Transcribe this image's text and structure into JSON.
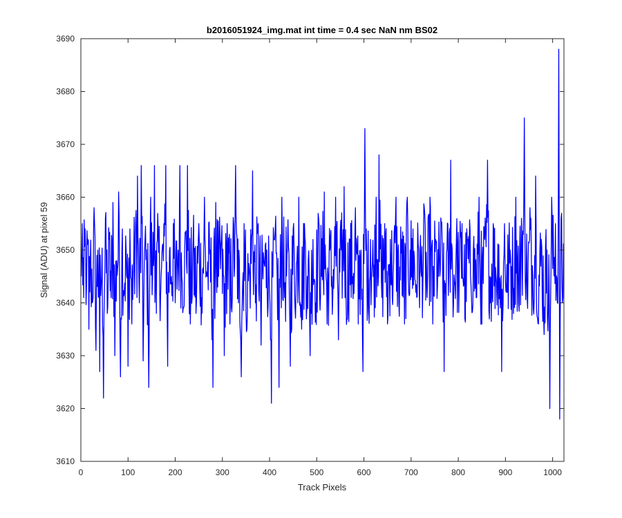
{
  "chart_data": {
    "type": "line",
    "title": "b2016051924_img.mat int time = 0.4 sec  NaN nm BS02",
    "xlabel": "Track Pixels",
    "ylabel": "Signal (ADU) at pixel 59",
    "xlim": [
      0,
      1024
    ],
    "ylim": [
      3610,
      3690
    ],
    "xticks": [
      0,
      100,
      200,
      300,
      400,
      500,
      600,
      700,
      800,
      900,
      1000
    ],
    "yticks": [
      3610,
      3620,
      3630,
      3640,
      3650,
      3660,
      3670,
      3680,
      3690
    ],
    "grid": false,
    "legend": "none",
    "series": [
      {
        "color": "#0000ff",
        "x_start": 1,
        "x_step": 1,
        "keypoints": [
          [
            1,
            3645
          ],
          [
            3,
            3655
          ],
          [
            6,
            3641
          ],
          [
            9,
            3654
          ],
          [
            12,
            3643
          ],
          [
            15,
            3652
          ],
          [
            17,
            3635
          ],
          [
            20,
            3648
          ],
          [
            24,
            3640
          ],
          [
            28,
            3658
          ],
          [
            32,
            3631
          ],
          [
            36,
            3650
          ],
          [
            40,
            3627
          ],
          [
            44,
            3645
          ],
          [
            48,
            3622
          ],
          [
            52,
            3656
          ],
          [
            56,
            3638
          ],
          [
            60,
            3652
          ],
          [
            64,
            3641
          ],
          [
            68,
            3659
          ],
          [
            72,
            3630
          ],
          [
            76,
            3648
          ],
          [
            80,
            3661
          ],
          [
            84,
            3626
          ],
          [
            88,
            3654
          ],
          [
            92,
            3642
          ],
          [
            96,
            3650
          ],
          [
            100,
            3628
          ],
          [
            104,
            3654
          ],
          [
            108,
            3636
          ],
          [
            112,
            3648
          ],
          [
            116,
            3655
          ],
          [
            120,
            3664
          ],
          [
            124,
            3640
          ],
          [
            128,
            3666
          ],
          [
            132,
            3629
          ],
          [
            136,
            3652
          ],
          [
            140,
            3645
          ],
          [
            144,
            3624
          ],
          [
            148,
            3660
          ],
          [
            152,
            3645
          ],
          [
            156,
            3666
          ],
          [
            160,
            3638
          ],
          [
            164,
            3653
          ],
          [
            170,
            3645
          ],
          [
            176,
            3655
          ],
          [
            180,
            3666
          ],
          [
            184,
            3628
          ],
          [
            188,
            3650
          ],
          [
            192,
            3645
          ],
          [
            196,
            3655
          ],
          [
            200,
            3640
          ],
          [
            206,
            3650
          ],
          [
            210,
            3666
          ],
          [
            214,
            3645
          ],
          [
            220,
            3650
          ],
          [
            226,
            3666
          ],
          [
            232,
            3636
          ],
          [
            238,
            3652
          ],
          [
            244,
            3638
          ],
          [
            250,
            3655
          ],
          [
            256,
            3641
          ],
          [
            262,
            3660
          ],
          [
            268,
            3645
          ],
          [
            274,
            3650
          ],
          [
            280,
            3624
          ],
          [
            286,
            3659
          ],
          [
            292,
            3645
          ],
          [
            298,
            3652
          ],
          [
            304,
            3630
          ],
          [
            310,
            3655
          ],
          [
            316,
            3636
          ],
          [
            322,
            3650
          ],
          [
            328,
            3666
          ],
          [
            334,
            3640
          ],
          [
            340,
            3626
          ],
          [
            346,
            3655
          ],
          [
            352,
            3635
          ],
          [
            358,
            3645
          ],
          [
            364,
            3665
          ],
          [
            370,
            3640
          ],
          [
            376,
            3655
          ],
          [
            382,
            3632
          ],
          [
            388,
            3648
          ],
          [
            394,
            3650
          ],
          [
            400,
            3642
          ],
          [
            404,
            3621
          ],
          [
            410,
            3652
          ],
          [
            416,
            3645
          ],
          [
            420,
            3624
          ],
          [
            426,
            3660
          ],
          [
            432,
            3641
          ],
          [
            438,
            3650
          ],
          [
            444,
            3628
          ],
          [
            450,
            3654
          ],
          [
            456,
            3642
          ],
          [
            462,
            3660
          ],
          [
            468,
            3635
          ],
          [
            474,
            3655
          ],
          [
            480,
            3645
          ],
          [
            486,
            3630
          ],
          [
            492,
            3652
          ],
          [
            498,
            3640
          ],
          [
            504,
            3656
          ],
          [
            510,
            3645
          ],
          [
            516,
            3661
          ],
          [
            522,
            3636
          ],
          [
            528,
            3650
          ],
          [
            534,
            3641
          ],
          [
            540,
            3660
          ],
          [
            546,
            3633
          ],
          [
            552,
            3650
          ],
          [
            558,
            3662
          ],
          [
            564,
            3637
          ],
          [
            570,
            3652
          ],
          [
            576,
            3645
          ],
          [
            582,
            3658
          ],
          [
            588,
            3636
          ],
          [
            594,
            3650
          ],
          [
            598,
            3627
          ],
          [
            602,
            3673
          ],
          [
            608,
            3640
          ],
          [
            614,
            3652
          ],
          [
            620,
            3645
          ],
          [
            626,
            3660
          ],
          [
            632,
            3668
          ],
          [
            638,
            3641
          ],
          [
            644,
            3655
          ],
          [
            650,
            3636
          ],
          [
            656,
            3652
          ],
          [
            662,
            3645
          ],
          [
            668,
            3660
          ],
          [
            674,
            3640
          ],
          [
            680,
            3652
          ],
          [
            686,
            3636
          ],
          [
            692,
            3660
          ],
          [
            698,
            3650
          ],
          [
            704,
            3654
          ],
          [
            710,
            3642
          ],
          [
            716,
            3650
          ],
          [
            722,
            3645
          ],
          [
            728,
            3658
          ],
          [
            734,
            3641
          ],
          [
            740,
            3660
          ],
          [
            746,
            3636
          ],
          [
            752,
            3652
          ],
          [
            758,
            3645
          ],
          [
            764,
            3655
          ],
          [
            770,
            3627
          ],
          [
            776,
            3650
          ],
          [
            780,
            3646
          ],
          [
            784,
            3667
          ],
          [
            790,
            3640
          ],
          [
            796,
            3652
          ],
          [
            802,
            3645
          ],
          [
            808,
            3655
          ],
          [
            814,
            3637
          ],
          [
            820,
            3652
          ],
          [
            826,
            3645
          ],
          [
            832,
            3650
          ],
          [
            838,
            3641
          ],
          [
            844,
            3660
          ],
          [
            850,
            3636
          ],
          [
            856,
            3652
          ],
          [
            862,
            3667
          ],
          [
            868,
            3640
          ],
          [
            874,
            3655
          ],
          [
            880,
            3645
          ],
          [
            886,
            3651
          ],
          [
            892,
            3627
          ],
          [
            898,
            3655
          ],
          [
            904,
            3642
          ],
          [
            910,
            3650
          ],
          [
            916,
            3645
          ],
          [
            922,
            3660
          ],
          [
            928,
            3640
          ],
          [
            934,
            3656
          ],
          [
            940,
            3675
          ],
          [
            946,
            3641
          ],
          [
            952,
            3658
          ],
          [
            958,
            3645
          ],
          [
            964,
            3664
          ],
          [
            970,
            3636
          ],
          [
            976,
            3652
          ],
          [
            982,
            3634
          ],
          [
            988,
            3650
          ],
          [
            994,
            3620
          ],
          [
            998,
            3660
          ],
          [
            1002,
            3648
          ],
          [
            1006,
            3655
          ],
          [
            1010,
            3640
          ],
          [
            1013,
            3688
          ],
          [
            1015,
            3618
          ],
          [
            1018,
            3656
          ],
          [
            1021,
            3640
          ],
          [
            1024,
            3650
          ]
        ]
      }
    ]
  }
}
